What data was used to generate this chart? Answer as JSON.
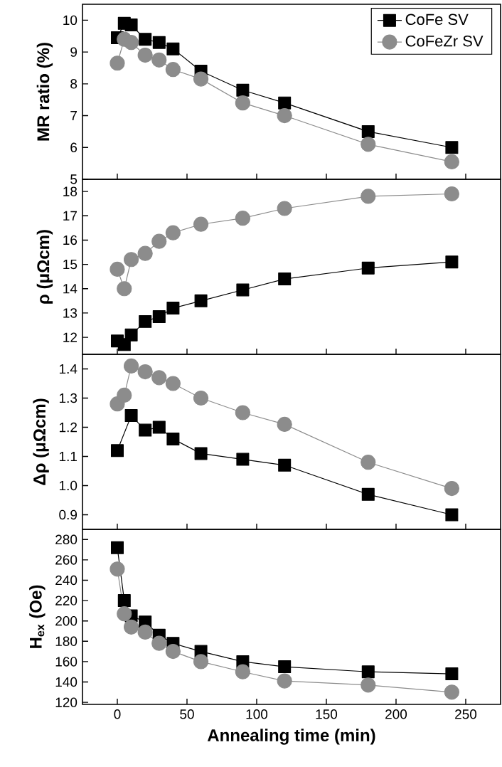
{
  "chart_data": [
    {
      "type": "line",
      "ylabel": "MR ratio (%)",
      "x": [
        0,
        5,
        10,
        20,
        30,
        40,
        60,
        90,
        120,
        180,
        240
      ],
      "xlim": [
        -25,
        275
      ],
      "xticks": [
        0,
        50,
        100,
        150,
        200,
        250
      ],
      "ylim": [
        5,
        10.5
      ],
      "yticks": [
        5,
        6,
        7,
        8,
        9,
        10
      ],
      "tick_labels": "y",
      "legend": "top right",
      "series": [
        {
          "name": "CoFe SV",
          "color": "#000000",
          "marker": "square",
          "values": [
            9.45,
            9.9,
            9.85,
            9.4,
            9.3,
            9.1,
            8.4,
            7.8,
            7.4,
            6.5,
            6.0
          ]
        },
        {
          "name": "CoFeZr SV",
          "color": "#8c8c8c",
          "marker": "circle",
          "values": [
            8.65,
            9.4,
            9.3,
            8.9,
            8.75,
            8.45,
            8.15,
            7.4,
            7.0,
            6.1,
            5.55
          ]
        }
      ]
    },
    {
      "type": "line",
      "ylabel": "ρ (μΩcm)",
      "x": [
        0,
        5,
        10,
        20,
        30,
        40,
        60,
        90,
        120,
        180,
        240
      ],
      "xlim": [
        -25,
        275
      ],
      "xticks": [
        0,
        50,
        100,
        150,
        200,
        250
      ],
      "ylim": [
        11.3,
        18.5
      ],
      "yticks": [
        12,
        13,
        14,
        15,
        16,
        17,
        18
      ],
      "tick_labels": "y",
      "series": [
        {
          "color": "#000000",
          "marker": "square",
          "values": [
            11.85,
            11.7,
            12.1,
            12.65,
            12.85,
            13.2,
            13.5,
            13.95,
            14.4,
            14.85,
            15.1
          ]
        },
        {
          "color": "#8c8c8c",
          "marker": "circle",
          "values": [
            14.8,
            14.0,
            15.2,
            15.45,
            15.95,
            16.3,
            16.65,
            16.9,
            17.3,
            17.8,
            17.9
          ]
        }
      ]
    },
    {
      "type": "line",
      "ylabel": "Δρ (μΩcm)",
      "x": [
        0,
        5,
        10,
        20,
        30,
        40,
        60,
        90,
        120,
        180,
        240
      ],
      "xlim": [
        -25,
        275
      ],
      "xticks": [
        0,
        50,
        100,
        150,
        200,
        250
      ],
      "ylim": [
        0.85,
        1.45
      ],
      "yticks": [
        {
          "value": 0.9,
          "label": "0.9"
        },
        {
          "value": 1.0,
          "label": "1.0"
        },
        {
          "value": 1.1,
          "label": "1.1"
        },
        {
          "value": 1.2,
          "label": "1.2"
        },
        {
          "value": 1.3,
          "label": "1.3"
        },
        {
          "value": 1.4,
          "label": "1.4"
        }
      ],
      "tick_labels": "y",
      "series": [
        {
          "color": "#000000",
          "marker": "square",
          "values": [
            1.12,
            null,
            1.24,
            1.19,
            1.2,
            1.16,
            1.11,
            1.09,
            1.07,
            0.97,
            0.9
          ]
        },
        {
          "color": "#8c8c8c",
          "marker": "circle",
          "values": [
            1.28,
            1.31,
            1.41,
            1.39,
            1.37,
            1.35,
            1.3,
            1.25,
            1.21,
            1.08,
            0.99
          ]
        }
      ]
    },
    {
      "type": "line",
      "ylabel": "H$_{ex}$ (Oe)",
      "xlabel": "Annealing time (min)",
      "x": [
        0,
        5,
        10,
        20,
        30,
        40,
        60,
        90,
        120,
        180,
        240
      ],
      "xlim": [
        -25,
        275
      ],
      "xticks": [
        0,
        50,
        100,
        150,
        200,
        250
      ],
      "ylim": [
        118,
        290
      ],
      "yticks": [
        120,
        140,
        160,
        180,
        200,
        220,
        240,
        260,
        280
      ],
      "series": [
        {
          "color": "#000000",
          "marker": "square",
          "values": [
            272,
            220,
            205,
            199,
            186,
            178,
            170,
            160,
            155,
            150,
            148
          ]
        },
        {
          "color": "#8c8c8c",
          "marker": "circle",
          "values": [
            251,
            207,
            194,
            189,
            178,
            170,
            160,
            150,
            141,
            137,
            130
          ]
        }
      ]
    }
  ]
}
